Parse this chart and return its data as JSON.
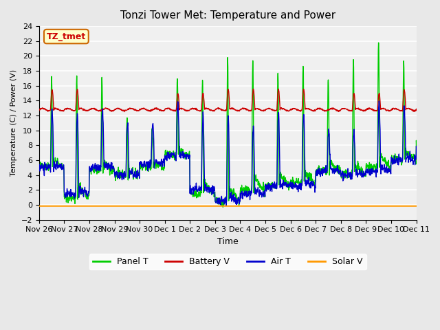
{
  "title": "Tonzi Tower Met: Temperature and Power",
  "ylabel": "Temperature (C) / Power (V)",
  "xlabel": "Time",
  "ylim": [
    -2,
    24
  ],
  "yticks": [
    -2,
    0,
    2,
    4,
    6,
    8,
    10,
    12,
    14,
    16,
    18,
    20,
    22,
    24
  ],
  "xtick_labels": [
    "Nov 26",
    "Nov 27",
    "Nov 28",
    "Nov 29",
    "Nov 30",
    "Dec 1",
    "Dec 2",
    "Dec 3",
    "Dec 4",
    "Dec 5",
    "Dec 6",
    "Dec 7",
    "Dec 8",
    "Dec 9",
    "Dec 10",
    "Dec 11"
  ],
  "annotation_text": "TZ_tmet",
  "annotation_bg": "#ffffcc",
  "annotation_border": "#cc6600",
  "annotation_text_color": "#cc0000",
  "line_colors": {
    "panel_t": "#00cc00",
    "battery_v": "#cc0000",
    "air_t": "#0000cc",
    "solar_v": "#ff9900"
  },
  "legend_labels": [
    "Panel T",
    "Battery V",
    "Air T",
    "Solar V"
  ],
  "bg_color": "#e8e8e8",
  "plot_bg": "#f0f0f0",
  "grid_color": "#ffffff",
  "num_days": 16
}
